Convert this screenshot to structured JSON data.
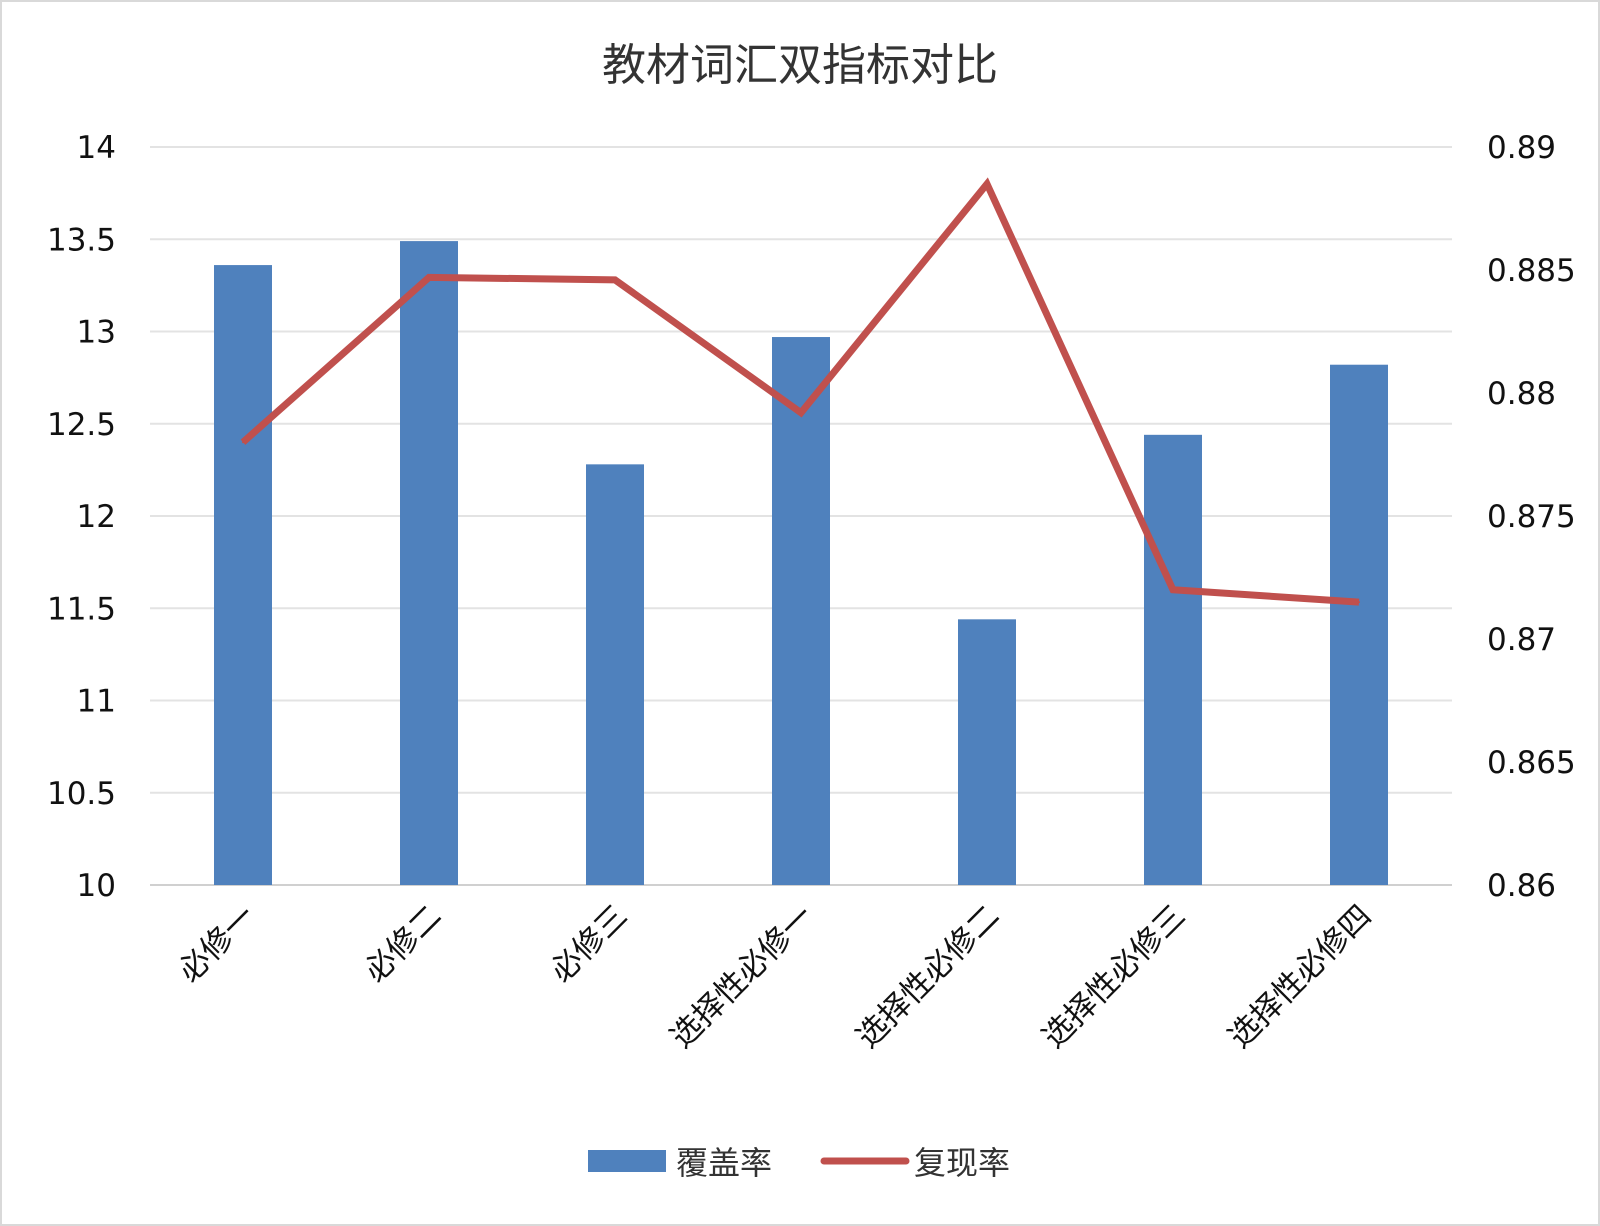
{
  "chart_data": {
    "type": "bar+line",
    "title": "教材词汇双指标对比",
    "categories": [
      "必修一",
      "必修二",
      "必修三",
      "选择性必修一",
      "选择性必修二",
      "选择性必修三",
      "选择性必修四"
    ],
    "series": [
      {
        "name": "覆盖率",
        "type": "bar",
        "axis": "left",
        "color": "#4F81BD",
        "values": [
          13.36,
          13.49,
          12.28,
          12.97,
          11.44,
          12.44,
          12.82
        ]
      },
      {
        "name": "复现率",
        "type": "line",
        "axis": "right",
        "color": "#C0504D",
        "values": [
          0.878,
          0.8847,
          0.8846,
          0.8792,
          0.8885,
          0.872,
          0.8715
        ]
      }
    ],
    "y_left": {
      "min": 10,
      "max": 14,
      "step": 0.5,
      "ticks": [
        "10",
        "10.5",
        "11",
        "11.5",
        "12",
        "12.5",
        "13",
        "13.5",
        "14"
      ]
    },
    "y_right": {
      "min": 0.86,
      "max": 0.89,
      "step": 0.005,
      "ticks": [
        "0.86",
        "0.865",
        "0.87",
        "0.875",
        "0.88",
        "0.885",
        "0.89"
      ]
    },
    "grid": true,
    "legend": "bottom"
  }
}
